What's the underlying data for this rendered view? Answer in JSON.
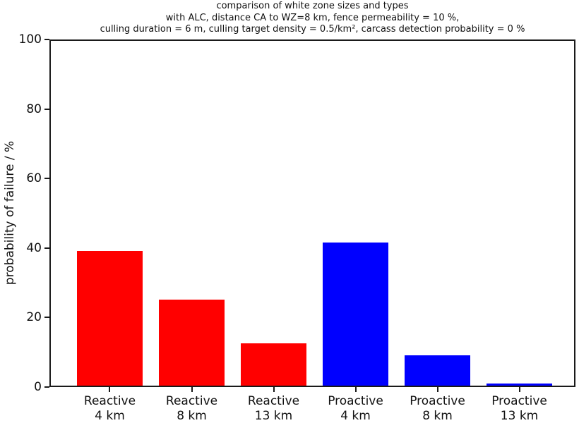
{
  "chart_data": {
    "type": "bar",
    "title_lines": [
      "comparison of white zone sizes and types",
      "with ALC, distance CA to WZ=8 km, fence permeability = 10 %,",
      "culling duration = 6 m, culling target density = 0.5/km², carcass detection probability = 0 %"
    ],
    "xlabel": "",
    "ylabel": "probability of failure / %",
    "ylim": [
      0,
      100
    ],
    "yticks": [
      0,
      20,
      40,
      60,
      80,
      100
    ],
    "categories": [
      [
        "Reactive",
        "4 km"
      ],
      [
        "Reactive",
        "8 km"
      ],
      [
        "Reactive",
        "13 km"
      ],
      [
        "Proactive",
        "4 km"
      ],
      [
        "Proactive",
        "8 km"
      ],
      [
        "Proactive",
        "13 km"
      ]
    ],
    "series": [
      {
        "name": "probability of failure",
        "values": [
          39.2,
          25.1,
          12.6,
          41.6,
          9.1,
          1.0
        ]
      }
    ],
    "bar_colors": [
      "#ff0000",
      "#ff0000",
      "#ff0000",
      "#0000ff",
      "#0000ff",
      "#0000ff"
    ],
    "grid": false,
    "legend": null
  },
  "colors": {
    "reactive_bar": "#ff0000",
    "proactive_bar": "#0000ff",
    "axis": "#1a1a1a",
    "background": "#ffffff"
  }
}
